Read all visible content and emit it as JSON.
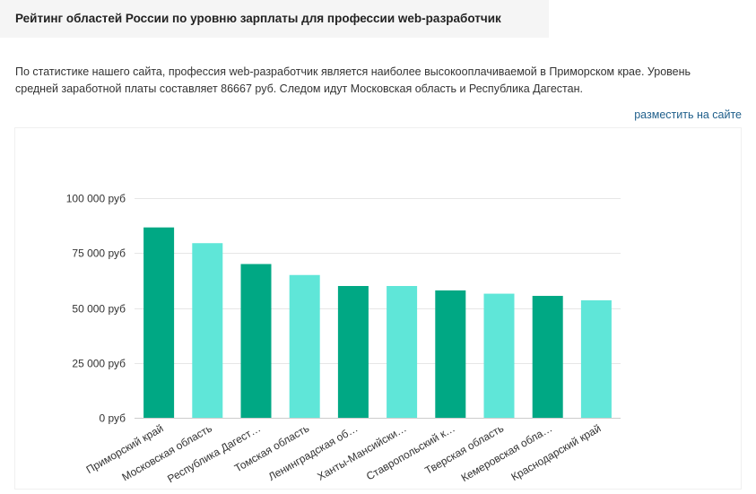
{
  "header": {
    "title": "Рейтинг областей России по уровню зарплаты для профессии web-разработчик"
  },
  "description": "По статистике нашего сайта, профессия web-разработчик является наиболее высокооплачиваемой в Приморском крае. Уровень средней заработной платы составляет 86667 руб. Следом идут Московская область и Республика Дагестан.",
  "actions": {
    "place_on_site": "разместить на сайте"
  },
  "colors": {
    "dark_bar": "#00a884",
    "light_bar": "#5fe6d8",
    "grid": "#e6e6e6",
    "axis": "#cccccc"
  },
  "chart_data": {
    "type": "bar",
    "categories": [
      "Приморский край",
      "Московская область",
      "Республика Дагест…",
      "Томская область",
      "Ленинградская об…",
      "Ханты-Мансийски…",
      "Ставропольский к…",
      "Тверская область",
      "Кемеровская обла…",
      "Краснодарский край"
    ],
    "values": [
      86667,
      79500,
      70000,
      65000,
      60000,
      60000,
      58000,
      56500,
      55500,
      53500
    ],
    "bar_colors": [
      "#00a884",
      "#5fe6d8",
      "#00a884",
      "#5fe6d8",
      "#00a884",
      "#5fe6d8",
      "#00a884",
      "#5fe6d8",
      "#00a884",
      "#5fe6d8"
    ],
    "y_ticks": [
      0,
      25000,
      50000,
      75000,
      100000
    ],
    "y_tick_labels": [
      "0 руб",
      "25 000 руб",
      "50 000 руб",
      "75 000 руб",
      "100 000 руб"
    ],
    "ylim": [
      0,
      100000
    ],
    "title": "",
    "xlabel": "",
    "ylabel": "",
    "grid": true,
    "legend": "none"
  }
}
